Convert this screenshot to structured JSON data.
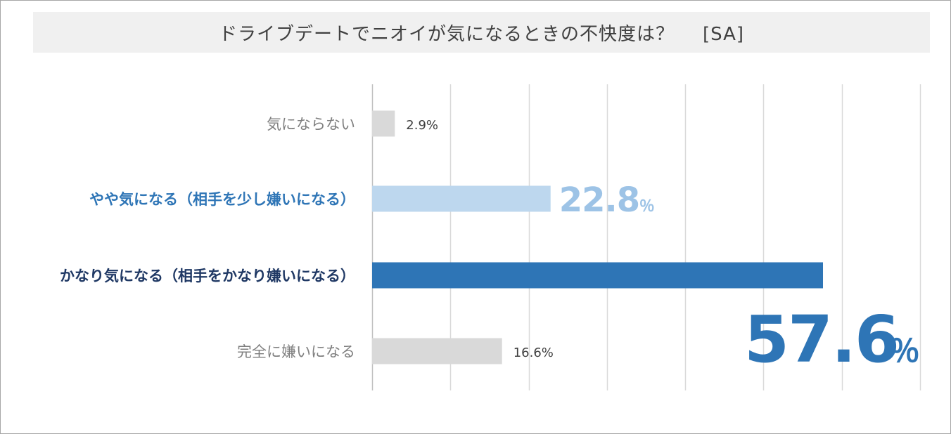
{
  "chart_data": {
    "type": "bar",
    "orientation": "horizontal",
    "title": "ドライブデートでニオイが気になるときの不快度は？",
    "question_type": "[SA]",
    "categories": [
      "気にならない",
      "やや気になる（相手を少し嫌いになる）",
      "かなり気になる（相手をかなり嫌いになる）",
      "完全に嫌いになる"
    ],
    "values": [
      2.9,
      22.8,
      57.6,
      16.6
    ],
    "value_labels": [
      {
        "number": "2.9%",
        "unit": ""
      },
      {
        "number": "22.8",
        "unit": "％"
      },
      {
        "number": "57.6",
        "unit": "％"
      },
      {
        "number": "16.6%",
        "unit": ""
      }
    ],
    "bar_colors": [
      "#d9d9d9",
      "#bdd7ee",
      "#2e75b6",
      "#d9d9d9"
    ],
    "label_colors": [
      "#7f7f7f",
      "#2e75b6",
      "#1f3864",
      "#7f7f7f"
    ],
    "value_label_colors": [
      "#404040",
      "#9dc3e6",
      "#2e75b6",
      "#404040"
    ],
    "xlim": [
      0,
      70
    ],
    "grid_step": 10,
    "grid": true,
    "xlabel": "",
    "ylabel": ""
  }
}
